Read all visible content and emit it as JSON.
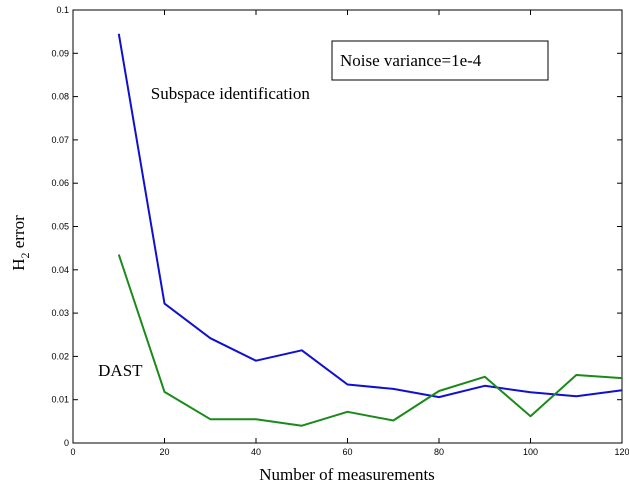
{
  "chart_data": {
    "type": "line",
    "title": "",
    "xlabel": "Number of measurements",
    "ylabel_main": "H",
    "ylabel_sub": "2",
    "ylabel_rest": " error",
    "xlim": [
      0,
      120
    ],
    "ylim": [
      0,
      0.1
    ],
    "xticks": [
      0,
      20,
      40,
      60,
      80,
      100,
      120
    ],
    "xtick_labels": [
      "0",
      "20",
      "40",
      "60",
      "80",
      "100",
      "120"
    ],
    "yticks": [
      0,
      0.01,
      0.02,
      0.03,
      0.04,
      0.05,
      0.06,
      0.07,
      0.08,
      0.09,
      0.1
    ],
    "ytick_labels": [
      "0",
      "0.01",
      "0.02",
      "0.03",
      "0.04",
      "0.05",
      "0.06",
      "0.07",
      "0.08",
      "0.09",
      "0.1"
    ],
    "grid": false,
    "x": [
      10,
      20,
      30,
      40,
      50,
      60,
      70,
      80,
      90,
      100,
      110,
      120
    ],
    "series": [
      {
        "color": "#1010d0",
        "values": [
          0.0945,
          0.0322,
          0.0242,
          0.019,
          0.0214,
          0.0135,
          0.0125,
          0.0106,
          0.0132,
          0.0117,
          0.0108,
          0.0122
        ]
      },
      {
        "color": "#1a8a1a",
        "values": [
          0.0435,
          0.0118,
          0.0055,
          0.0055,
          0.004,
          0.0072,
          0.0052,
          0.012,
          0.0153,
          0.0062,
          0.0157,
          0.015
        ]
      }
    ],
    "annotations": [
      {
        "text": "Subspace identification",
        "anchor_x": 17,
        "anchor_y": 0.0795
      },
      {
        "text": "DAST",
        "anchor_x": 5.5,
        "anchor_y": 0.0155
      }
    ],
    "legend_box": {
      "text": "Noise variance=1e-4",
      "placement": "top-right"
    }
  }
}
